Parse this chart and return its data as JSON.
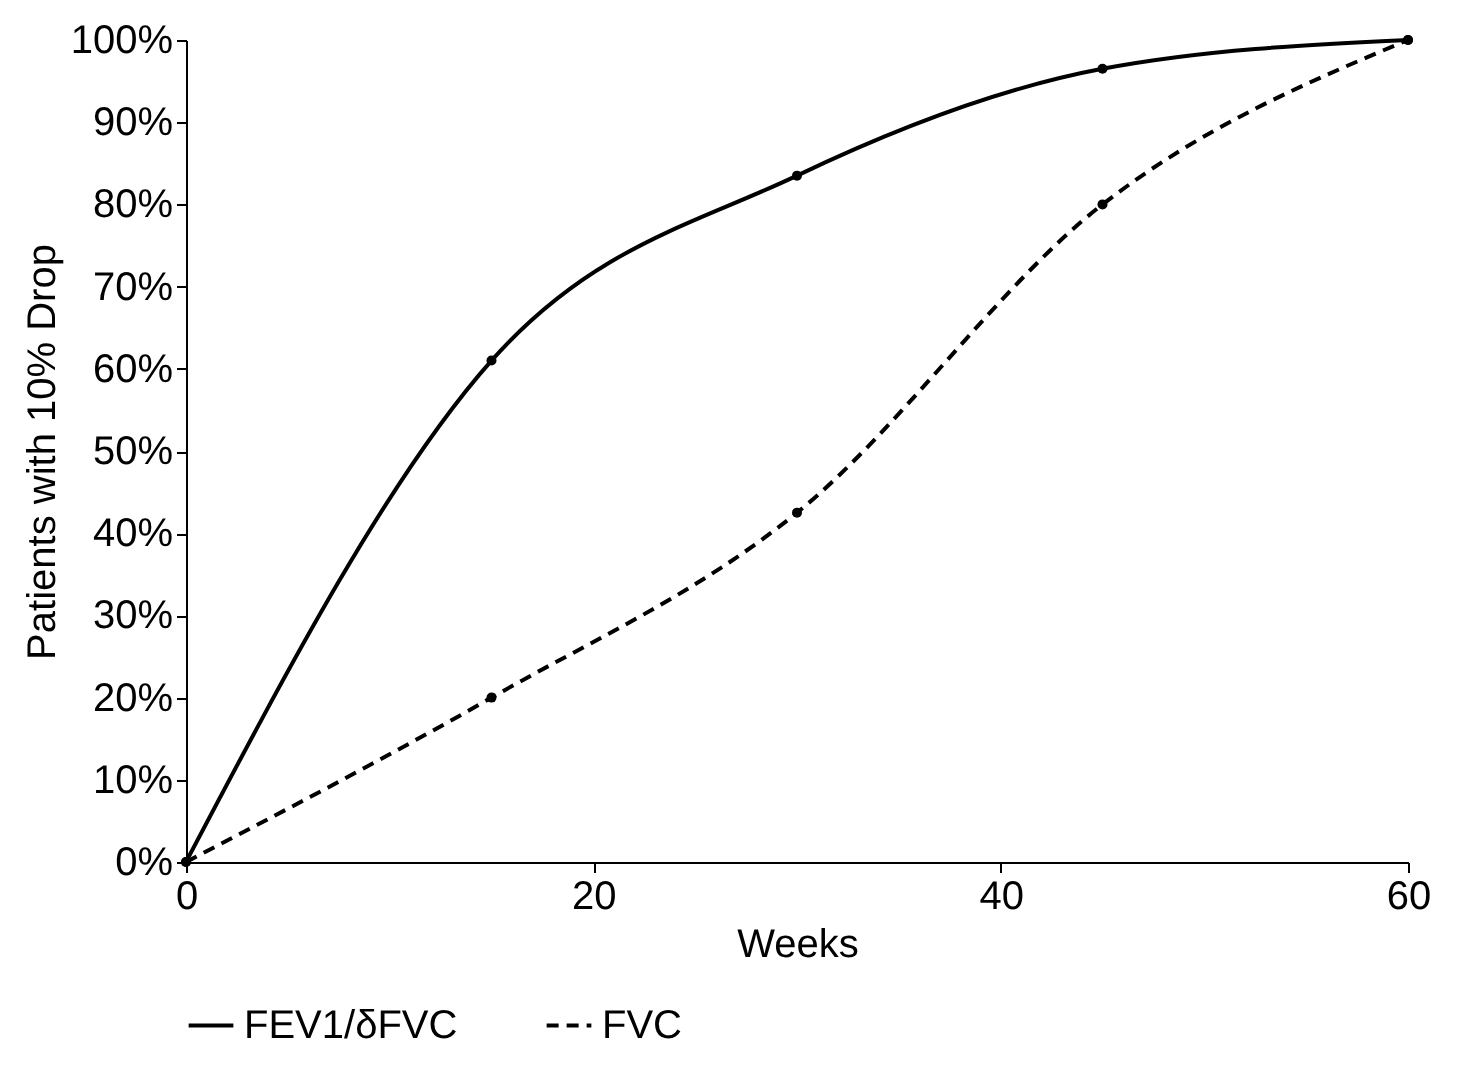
{
  "chart_data": {
    "type": "line",
    "xlabel": "Weeks",
    "ylabel": "Patients with 10% Drop",
    "x": [
      0,
      15,
      30,
      45,
      60
    ],
    "series": [
      {
        "name": "FEV1/δFVC",
        "color": "#000000",
        "line_style": "solid",
        "values": [
          0,
          61,
          83.5,
          96.5,
          100
        ]
      },
      {
        "name": "FVC",
        "color": "#000000",
        "line_style": "dashed",
        "values": [
          0,
          20,
          42.5,
          80,
          100
        ]
      }
    ],
    "xlim": [
      0,
      60
    ],
    "xticks": [
      0,
      20,
      40,
      60
    ],
    "ylim": [
      0,
      100
    ],
    "yticks": [
      {
        "value": 0,
        "label": "0%"
      },
      {
        "value": 10,
        "label": "10%"
      },
      {
        "value": 20,
        "label": "20%"
      },
      {
        "value": 30,
        "label": "30%"
      },
      {
        "value": 40,
        "label": "40%"
      },
      {
        "value": 50,
        "label": "50%"
      },
      {
        "value": 60,
        "label": "60%"
      },
      {
        "value": 70,
        "label": "70%"
      },
      {
        "value": 80,
        "label": "80%"
      },
      {
        "value": 90,
        "label": "90%"
      },
      {
        "value": 100,
        "label": "100%"
      }
    ],
    "marker": "circle",
    "legend": "bottom",
    "grid": false
  }
}
